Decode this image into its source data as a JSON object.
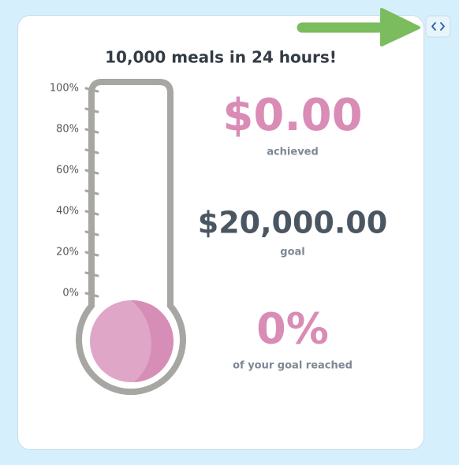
{
  "widget": {
    "title": "10,000 meals in 24 hours!",
    "scale": [
      "100%",
      "80%",
      "60%",
      "40%",
      "20%",
      "0%"
    ],
    "stats": [
      {
        "value": "$0.00",
        "label": "achieved"
      },
      {
        "value": "$20,000.00",
        "label": "goal"
      },
      {
        "value": "0%",
        "label": "of your goal reached"
      }
    ]
  }
}
